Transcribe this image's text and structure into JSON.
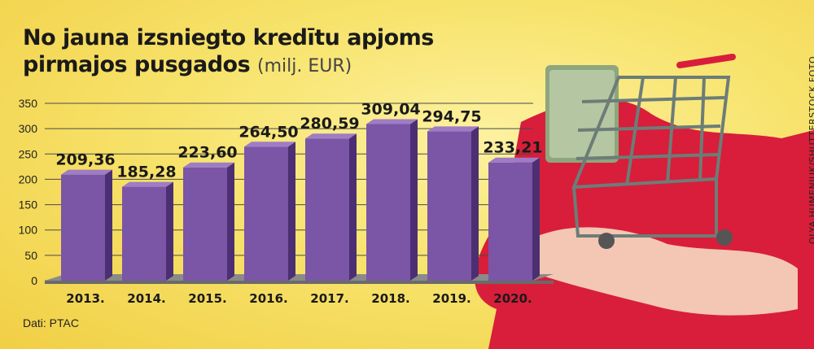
{
  "title_line1": "No jauna izsniegto kredītu apjoms",
  "title_line2": "pirmajos pusgados",
  "title_unit": "(milj. EUR)",
  "source": "Dati: PTAC",
  "photo_credit": "OLYA HUMENIUK/SHUTTERSTOCK FOTO",
  "colors": {
    "bar": "#7b55a6",
    "bar_side": "#4c2f72",
    "bar_top": "#9e7cc6"
  },
  "chart_data": {
    "type": "bar",
    "categories": [
      "2013.",
      "2014.",
      "2015.",
      "2016.",
      "2017.",
      "2018.",
      "2019.",
      "2020."
    ],
    "values": [
      209.36,
      185.28,
      223.6,
      264.5,
      280.59,
      309.04,
      294.75,
      233.21
    ],
    "value_labels": [
      "209,36",
      "185,28",
      "223,60",
      "264,50",
      "280,59",
      "309,04",
      "294,75",
      "233,21"
    ],
    "yticks": [
      0,
      50,
      100,
      150,
      200,
      250,
      300,
      350
    ],
    "ylim": [
      0,
      350
    ],
    "grid": true
  }
}
